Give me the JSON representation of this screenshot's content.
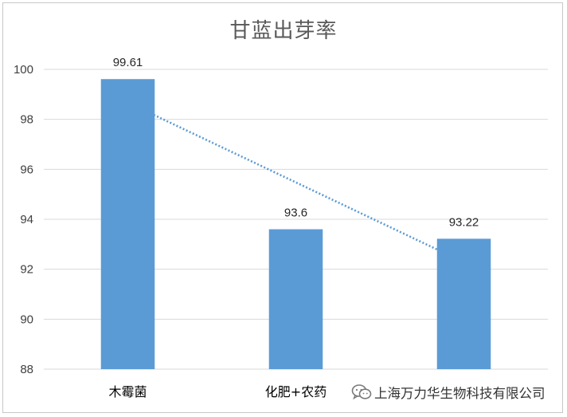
{
  "chart_data": {
    "type": "bar",
    "title": "甘蓝出芽率",
    "categories": [
      "木霉菌",
      "化肥+农药",
      ""
    ],
    "values": [
      99.61,
      93.6,
      93.22
    ],
    "data_labels": [
      "99.61",
      "93.6",
      "93.22"
    ],
    "xlabel": "",
    "ylabel": "",
    "ylim": [
      88,
      100
    ],
    "yticks": [
      88,
      90,
      92,
      94,
      96,
      98,
      100
    ],
    "grid": true,
    "legend": "none",
    "trendline": "linear",
    "bar_color": "#5b9bd5",
    "trendline_color": "#5b9bd5",
    "grid_color": "#d9d9d9"
  },
  "watermark": {
    "icon": "wechat-icon",
    "text": "上海万力华生物科技有限公司"
  }
}
